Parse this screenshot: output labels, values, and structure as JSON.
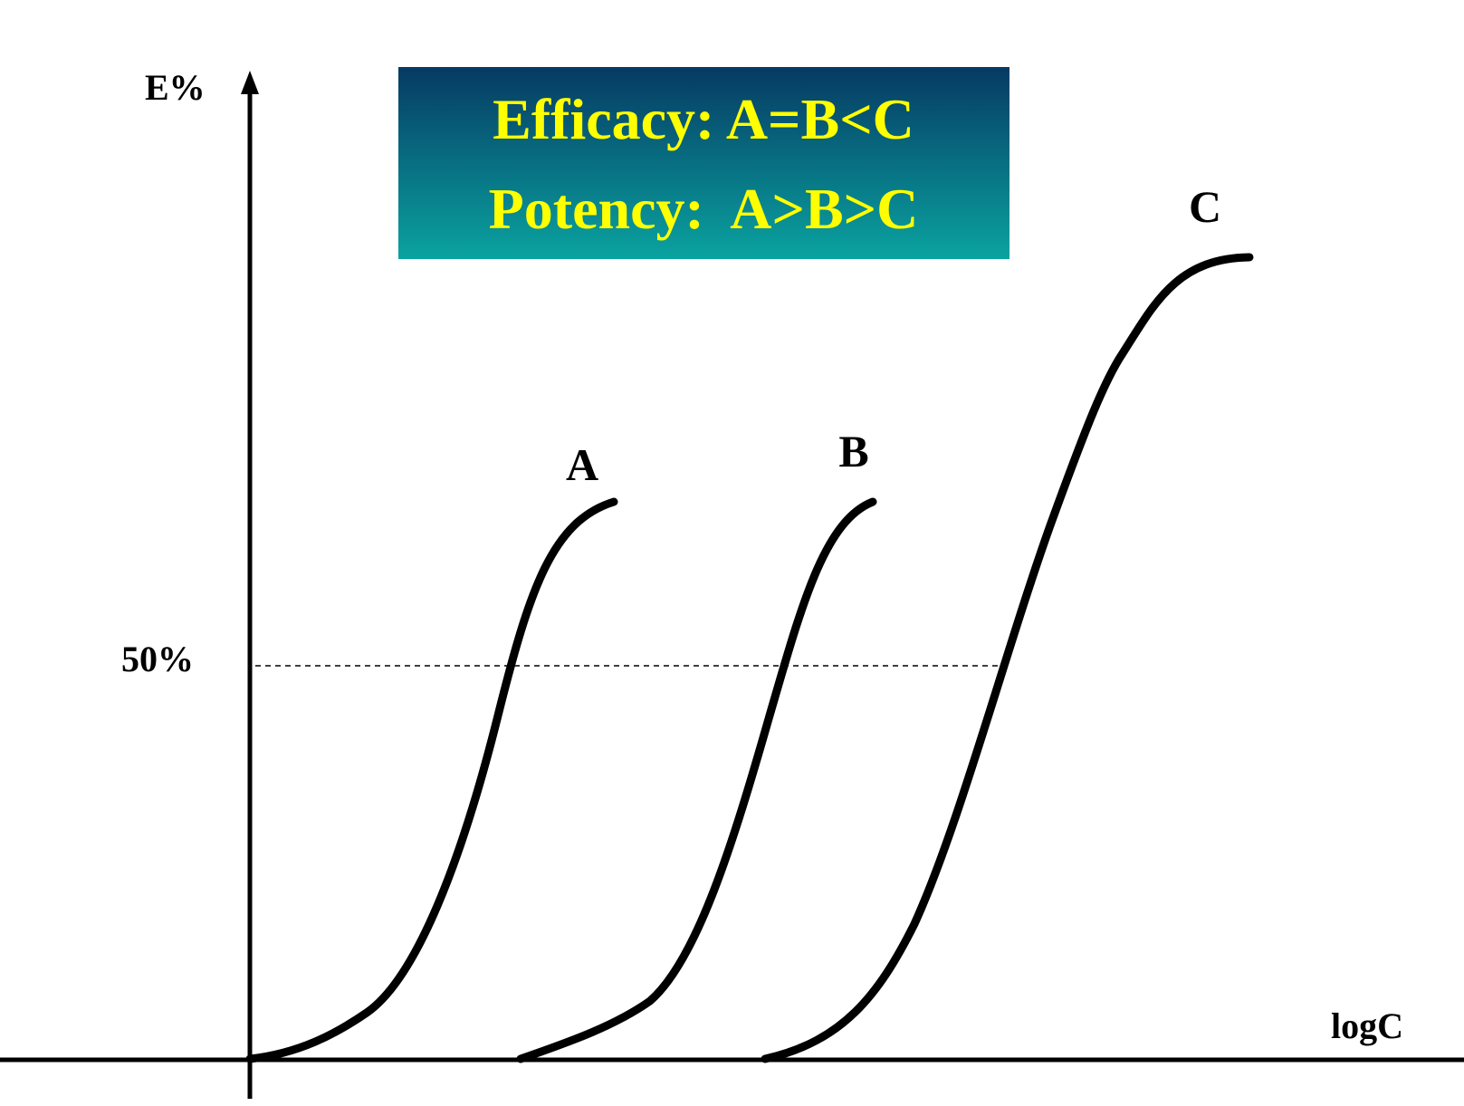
{
  "axes": {
    "y_label": "E%",
    "x_label": "logC"
  },
  "reference_line": {
    "label": "50%",
    "style": "dashed"
  },
  "banner": {
    "line1": "Efficacy: A=B<C",
    "line2": "Potency:  A>B>C",
    "text_color": "#ffff00",
    "gradient_top": "#063a63",
    "gradient_bottom": "#0aa3a0"
  },
  "curves": [
    {
      "id": "a",
      "label": "A"
    },
    {
      "id": "b",
      "label": "B"
    },
    {
      "id": "c",
      "label": "C"
    }
  ],
  "colors": {
    "axis": "#000000",
    "curve": "#000000",
    "background": "#ffffff"
  }
}
